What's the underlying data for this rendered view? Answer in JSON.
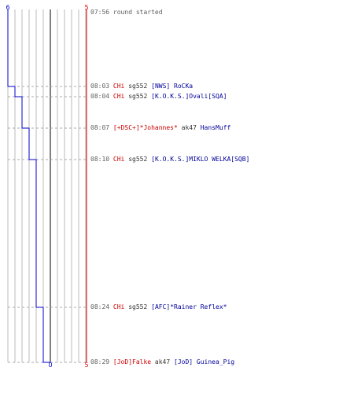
{
  "graph": {
    "blue_top": "6",
    "red_top": "5",
    "blue_bottom": "0",
    "red_bottom": "5",
    "blue_color": "#0000cc",
    "red_color": "#dd0000"
  },
  "events": [
    {
      "time": "08:03",
      "killer": "CHi",
      "weapon": "sg552",
      "victim": "[NWS] RoCKa",
      "killer_team": "red",
      "victim_team": "blue",
      "blue_count": 5
    },
    {
      "time": "08:04",
      "killer": "CHi",
      "weapon": "sg552",
      "victim": "[K.O.K.S.]Ovali[SQA]",
      "killer_team": "red",
      "victim_team": "blue",
      "blue_count": 4
    },
    {
      "time": "08:07",
      "killer": "[+DSC+]*Johannes*",
      "weapon": "ak47",
      "victim": "HansMuff",
      "killer_team": "red",
      "victim_team": "blue",
      "blue_count": 3
    },
    {
      "time": "08:10",
      "killer": "CHi",
      "weapon": "sg552",
      "victim": "[K.O.K.S.]MIKLO WELKA[SQB]",
      "killer_team": "red",
      "victim_team": "blue",
      "blue_count": 2
    },
    {
      "time": "08:24",
      "killer": "CHi",
      "weapon": "sg552",
      "victim": "[AFC]*Rainer Reflex*",
      "killer_team": "red",
      "victim_team": "blue",
      "blue_count": 1
    },
    {
      "time": "08:29",
      "killer": "[JoD]Falke",
      "weapon": "ak47",
      "victim": "[JoD] Guinea_Pig",
      "killer_team": "red",
      "victim_team": "blue",
      "blue_count": 0
    }
  ],
  "start": {
    "time": "07:56",
    "text": "round started"
  }
}
